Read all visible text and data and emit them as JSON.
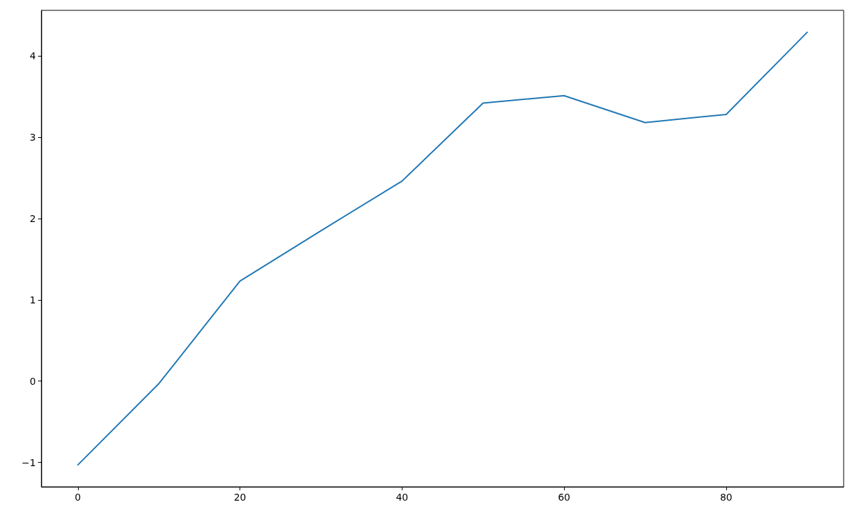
{
  "chart_data": {
    "type": "line",
    "x": [
      0,
      10,
      20,
      30,
      40,
      50,
      60,
      70,
      80,
      90
    ],
    "values": [
      -1.03,
      -0.03,
      1.23,
      1.85,
      2.46,
      3.42,
      3.51,
      3.18,
      3.28,
      4.29
    ],
    "color": "#1f77b4",
    "line_style": "solid",
    "xlim": [
      -4.5,
      94.5
    ],
    "xticks": [
      0,
      20,
      40,
      60,
      80
    ],
    "ylim": [
      -1.3,
      4.56
    ],
    "yticks": [
      {
        "value": -1,
        "label": "−1"
      },
      0,
      1,
      2,
      3,
      4
    ]
  }
}
